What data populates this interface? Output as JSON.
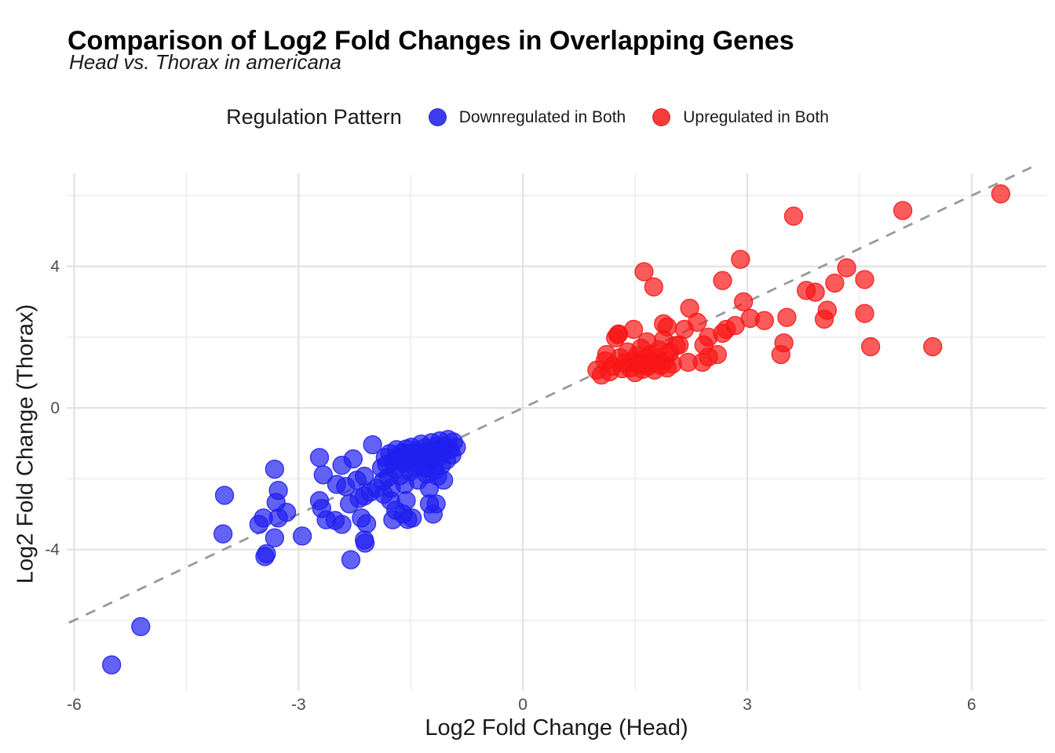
{
  "header": {
    "title": "Comparison of Log2 Fold Changes in Overlapping Genes",
    "subtitle": "Head vs. Thorax in americana"
  },
  "legend": {
    "title": "Regulation Pattern",
    "items": [
      {
        "label": "Downregulated in Both",
        "color": "#3d3def"
      },
      {
        "label": "Upregulated in Both",
        "color": "#fb3b3b"
      }
    ]
  },
  "axes": {
    "x_label": "Log2 Fold Change (Head)",
    "y_label": "Log2 Fold Change (Thorax)"
  },
  "chart_data": {
    "type": "scatter",
    "title": "Comparison of Log2 Fold Changes in Overlapping Genes",
    "subtitle": "Head vs. Thorax in americana",
    "xlabel": "Log2 Fold Change (Head)",
    "ylabel": "Log2 Fold Change (Thorax)",
    "xlim": [
      -6.1,
      7.0
    ],
    "ylim": [
      -8.0,
      6.63
    ],
    "x_major_ticks": [
      -6,
      -3,
      0,
      3,
      6
    ],
    "x_minor_ticks": [
      -4.5,
      -1.5,
      1.5,
      4.5
    ],
    "y_major_ticks": [
      -4,
      0,
      4
    ],
    "y_minor_ticks": [
      -6,
      -2,
      2,
      6
    ],
    "grid": true,
    "legend_position": "top",
    "identity_line": {
      "style": "dashed",
      "color": "#999999",
      "x1": -6.07,
      "y1": -6.07,
      "x2": 6.8,
      "y2": 6.8
    },
    "point_style": {
      "radius": 11.5,
      "fill_opacity": 0.7,
      "stroke_opacity": 0.9
    },
    "grid_colors": {
      "major": "#e2e2e2",
      "minor": "#efefef"
    },
    "series": [
      {
        "name": "Downregulated in Both",
        "color": "#1f1ff0",
        "points": [
          [
            -0.89,
            -1.11
          ],
          [
            -0.93,
            -0.96
          ],
          [
            -0.95,
            -1.33
          ],
          [
            -0.98,
            -1.18
          ],
          [
            -1.0,
            -0.89
          ],
          [
            -1.02,
            -1.47
          ],
          [
            -1.04,
            -1.07
          ],
          [
            -1.07,
            -1.24
          ],
          [
            -1.09,
            -1.62
          ],
          [
            -1.11,
            -0.93
          ],
          [
            -1.13,
            -1.38
          ],
          [
            -1.16,
            -1.09
          ],
          [
            -1.18,
            -1.76
          ],
          [
            -1.2,
            -1.2
          ],
          [
            -1.22,
            -0.98
          ],
          [
            -1.24,
            -1.51
          ],
          [
            -1.27,
            -1.29
          ],
          [
            -1.29,
            -1.87
          ],
          [
            -1.31,
            -1.13
          ],
          [
            -1.33,
            -1.6
          ],
          [
            -1.36,
            -1.02
          ],
          [
            -1.38,
            -1.42
          ],
          [
            -1.4,
            -2.04
          ],
          [
            -1.42,
            -1.22
          ],
          [
            -1.44,
            -1.69
          ],
          [
            -1.47,
            -1.33
          ],
          [
            -1.49,
            -1.11
          ],
          [
            -1.51,
            -1.8
          ],
          [
            -1.53,
            -1.44
          ],
          [
            -1.56,
            -1.16
          ],
          [
            -1.58,
            -2.16
          ],
          [
            -1.6,
            -1.56
          ],
          [
            -1.62,
            -1.27
          ],
          [
            -1.64,
            -1.91
          ],
          [
            -1.67,
            -1.38
          ],
          [
            -1.69,
            -1.18
          ],
          [
            -1.71,
            -1.73
          ],
          [
            -1.73,
            -1.49
          ],
          [
            -1.76,
            -2.27
          ],
          [
            -1.78,
            -1.29
          ],
          [
            -1.8,
            -1.96
          ],
          [
            -1.82,
            -1.6
          ],
          [
            -1.84,
            -1.4
          ],
          [
            -1.87,
            -2.07
          ],
          [
            -1.89,
            -1.69
          ],
          [
            -2.01,
            -1.04
          ],
          [
            -1.35,
            -1.25
          ],
          [
            -1.45,
            -1.55
          ],
          [
            -1.3,
            -1.7
          ],
          [
            -1.52,
            -1.28
          ],
          [
            -1.23,
            -1.42
          ],
          [
            -1.65,
            -1.5
          ],
          [
            -2.72,
            -1.4
          ],
          [
            -2.67,
            -1.89
          ],
          [
            -2.27,
            -1.44
          ],
          [
            -2.42,
            -1.62
          ],
          [
            -2.49,
            -2.16
          ],
          [
            -2.37,
            -2.22
          ],
          [
            -2.22,
            -2.04
          ],
          [
            -2.12,
            -1.93
          ],
          [
            -2.04,
            -2.38
          ],
          [
            -2.12,
            -2.49
          ],
          [
            -2.19,
            -2.56
          ],
          [
            -2.32,
            -2.71
          ],
          [
            -2.72,
            -2.62
          ],
          [
            -2.69,
            -2.84
          ],
          [
            -2.63,
            -3.16
          ],
          [
            -2.51,
            -3.18
          ],
          [
            -2.42,
            -3.29
          ],
          [
            -2.16,
            -3.11
          ],
          [
            -2.09,
            -3.27
          ],
          [
            -2.12,
            -3.73
          ],
          [
            -1.96,
            -2.27
          ],
          [
            -1.86,
            -2.44
          ],
          [
            -1.77,
            -2.62
          ],
          [
            -1.7,
            -2.89
          ],
          [
            -1.6,
            -3.0
          ],
          [
            -1.48,
            -3.11
          ],
          [
            -1.25,
            -2.71
          ],
          [
            -1.2,
            -3.0
          ],
          [
            -1.54,
            -3.15
          ],
          [
            -1.56,
            -2.62
          ],
          [
            -1.74,
            -3.16
          ],
          [
            -1.14,
            -1.93
          ],
          [
            -1.06,
            -2.04
          ],
          [
            -1.25,
            -2.27
          ],
          [
            -1.16,
            -2.71
          ],
          [
            -3.32,
            -1.73
          ],
          [
            -3.99,
            -2.47
          ],
          [
            -3.27,
            -2.33
          ],
          [
            -3.3,
            -2.67
          ],
          [
            -4.01,
            -3.56
          ],
          [
            -3.53,
            -3.29
          ],
          [
            -3.47,
            -3.11
          ],
          [
            -3.27,
            -3.11
          ],
          [
            -3.32,
            -3.67
          ],
          [
            -3.43,
            -4.12
          ],
          [
            -3.45,
            -4.2
          ],
          [
            -2.95,
            -3.62
          ],
          [
            -3.16,
            -2.95
          ],
          [
            -5.5,
            -7.26
          ],
          [
            -5.11,
            -6.18
          ],
          [
            -2.3,
            -4.29
          ],
          [
            -2.11,
            -3.82
          ]
        ]
      },
      {
        "name": "Upregulated in Both",
        "color": "#f91515",
        "points": [
          [
            0.99,
            1.07
          ],
          [
            1.05,
            0.93
          ],
          [
            1.1,
            1.33
          ],
          [
            1.12,
            1.51
          ],
          [
            1.16,
            1.02
          ],
          [
            1.2,
            1.18
          ],
          [
            1.24,
            1.98
          ],
          [
            1.28,
            2.09
          ],
          [
            1.3,
            1.42
          ],
          [
            1.33,
            1.11
          ],
          [
            1.36,
            1.27
          ],
          [
            1.4,
            1.58
          ],
          [
            1.43,
            1.13
          ],
          [
            1.47,
            1.33
          ],
          [
            1.5,
            1.0
          ],
          [
            1.52,
            1.47
          ],
          [
            1.55,
            1.22
          ],
          [
            1.58,
            1.69
          ],
          [
            1.6,
            1.09
          ],
          [
            1.63,
            1.38
          ],
          [
            1.66,
            1.87
          ],
          [
            1.68,
            1.18
          ],
          [
            1.71,
            1.51
          ],
          [
            1.74,
            1.29
          ],
          [
            1.76,
            1.07
          ],
          [
            1.79,
            1.42
          ],
          [
            1.82,
            1.64
          ],
          [
            1.85,
            1.2
          ],
          [
            1.88,
            1.93
          ],
          [
            1.9,
            1.33
          ],
          [
            1.93,
            1.13
          ],
          [
            1.96,
            1.56
          ],
          [
            2.0,
            1.24
          ],
          [
            2.05,
            1.76
          ],
          [
            2.09,
            1.78
          ],
          [
            2.16,
            2.22
          ],
          [
            1.27,
            2.07
          ],
          [
            1.48,
            2.22
          ],
          [
            1.88,
            2.38
          ],
          [
            1.62,
            3.85
          ],
          [
            1.75,
            3.42
          ],
          [
            1.93,
            2.29
          ],
          [
            2.23,
            2.82
          ],
          [
            2.33,
            2.42
          ],
          [
            2.42,
            1.78
          ],
          [
            2.48,
            1.44
          ],
          [
            2.21,
            1.29
          ],
          [
            2.4,
            1.29
          ],
          [
            2.6,
            1.51
          ],
          [
            2.48,
            2.0
          ],
          [
            2.67,
            2.11
          ],
          [
            2.72,
            2.22
          ],
          [
            2.84,
            2.33
          ],
          [
            2.67,
            3.6
          ],
          [
            2.91,
            4.2
          ],
          [
            2.95,
            3.0
          ],
          [
            3.04,
            2.53
          ],
          [
            3.23,
            2.47
          ],
          [
            3.45,
            1.51
          ],
          [
            3.49,
            1.84
          ],
          [
            3.53,
            2.56
          ],
          [
            3.62,
            5.42
          ],
          [
            3.79,
            3.32
          ],
          [
            3.91,
            3.27
          ],
          [
            4.03,
            2.51
          ],
          [
            4.07,
            2.76
          ],
          [
            4.17,
            3.53
          ],
          [
            4.33,
            3.96
          ],
          [
            4.57,
            3.63
          ],
          [
            4.57,
            2.67
          ],
          [
            4.65,
            1.73
          ],
          [
            5.08,
            5.58
          ],
          [
            5.48,
            1.73
          ],
          [
            6.39,
            6.05
          ]
        ]
      }
    ]
  }
}
